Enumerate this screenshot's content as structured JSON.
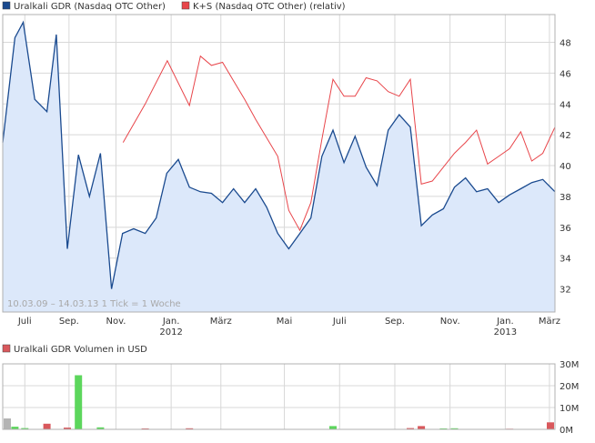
{
  "colors": {
    "main_line": "#1a4a8f",
    "main_fill": "#dce8fa",
    "compare_line": "#e8454a",
    "grid": "#d8d8d8",
    "frame": "#b0b0b0",
    "text": "#333333",
    "watermark": "#a8a8a8",
    "vol_up": "#5cd65c",
    "vol_down": "#d9585c",
    "vol_neutral": "#b4b4b4"
  },
  "chart_data": [
    {
      "type": "line",
      "legend": [
        {
          "label": "Uralkali GDR (Nasdaq OTC Other)",
          "color": "#1a4a8f"
        },
        {
          "label": "K+S (Nasdaq OTC Other) (relativ)",
          "color": "#e8454a"
        }
      ],
      "watermark": "10.03.09 – 14.03.13   1 Tick = 1 Woche",
      "x_ticks": [
        {
          "label": "Juli",
          "t": 0.04
        },
        {
          "label": "Sep.",
          "t": 0.12
        },
        {
          "label": "Nov.",
          "t": 0.205
        },
        {
          "label": "Jan.",
          "t": 0.305
        },
        {
          "label": "2012",
          "t": 0.305,
          "sub": true
        },
        {
          "label": "März",
          "t": 0.395
        },
        {
          "label": "Mai",
          "t": 0.51
        },
        {
          "label": "Juli",
          "t": 0.61
        },
        {
          "label": "Sep.",
          "t": 0.71
        },
        {
          "label": "Nov.",
          "t": 0.81
        },
        {
          "label": "Jan.",
          "t": 0.91
        },
        {
          "label": "2013",
          "t": 0.91,
          "sub": true
        },
        {
          "label": "März",
          "t": 0.99
        }
      ],
      "y_ticks": [
        32,
        34,
        36,
        38,
        40,
        42,
        44,
        46,
        48
      ],
      "ylim": [
        30.5,
        49.8
      ],
      "grid": true,
      "series": [
        {
          "name": "Uralkali GDR (Nasdaq OTC Other)",
          "x": [
            0,
            0.022,
            0.037,
            0.058,
            0.08,
            0.097,
            0.117,
            0.137,
            0.157,
            0.177,
            0.197,
            0.217,
            0.237,
            0.258,
            0.278,
            0.297,
            0.318,
            0.338,
            0.358,
            0.378,
            0.398,
            0.418,
            0.438,
            0.458,
            0.478,
            0.498,
            0.518,
            0.538,
            0.558,
            0.578,
            0.598,
            0.618,
            0.638,
            0.658,
            0.678,
            0.698,
            0.718,
            0.738,
            0.758,
            0.778,
            0.798,
            0.818,
            0.838,
            0.858,
            0.878,
            0.898,
            0.918,
            0.938,
            0.958,
            0.978,
            1.0
          ],
          "values": [
            41.5,
            48.3,
            49.3,
            44.3,
            43.5,
            48.5,
            34.6,
            40.7,
            38.0,
            40.8,
            32.0,
            35.6,
            35.9,
            35.6,
            36.6,
            39.5,
            40.4,
            38.6,
            38.3,
            38.2,
            37.6,
            38.5,
            37.6,
            38.5,
            37.3,
            35.6,
            34.6,
            35.6,
            36.6,
            40.6,
            42.3,
            40.2,
            41.9,
            39.9,
            38.7,
            42.3,
            43.3,
            42.5,
            36.1,
            36.8,
            37.2,
            38.6,
            39.2,
            38.3,
            38.5,
            37.6,
            38.1,
            38.5,
            38.9,
            39.1,
            38.3
          ]
        },
        {
          "name": "K+S (Nasdaq OTC Other) (relativ)",
          "x": [
            0.218,
            0.258,
            0.298,
            0.338,
            0.358,
            0.378,
            0.398,
            0.418,
            0.438,
            0.458,
            0.478,
            0.498,
            0.518,
            0.538,
            0.558,
            0.578,
            0.598,
            0.618,
            0.638,
            0.658,
            0.678,
            0.698,
            0.718,
            0.738,
            0.758,
            0.778,
            0.798,
            0.818,
            0.838,
            0.858,
            0.878,
            0.898,
            0.918,
            0.938,
            0.958,
            0.978,
            1.0
          ],
          "values": [
            41.5,
            44.0,
            46.8,
            43.9,
            47.1,
            46.5,
            46.7,
            45.5,
            44.3,
            43.0,
            41.8,
            40.6,
            37.1,
            35.8,
            37.6,
            41.7,
            45.6,
            44.5,
            44.5,
            45.7,
            45.5,
            44.8,
            44.5,
            45.6,
            38.8,
            39.0,
            39.9,
            40.8,
            41.5,
            42.3,
            40.1,
            40.6,
            41.1,
            42.2,
            40.3,
            40.8,
            42.5
          ]
        }
      ]
    },
    {
      "type": "bar",
      "legend": [
        {
          "label": "Uralkali GDR Volumen in USD",
          "color": "#d9585c"
        }
      ],
      "y_ticks": [
        "0M",
        "10M",
        "20M",
        "30M"
      ],
      "y_tick_values": [
        0,
        10,
        20,
        30
      ],
      "ylim": [
        0,
        30
      ],
      "grid": true,
      "bars": [
        {
          "t": 0.0,
          "value": 5.0,
          "kind": "neutral"
        },
        {
          "t": 0.022,
          "value": 1.2,
          "kind": "up"
        },
        {
          "t": 0.04,
          "value": 0.6,
          "kind": "up"
        },
        {
          "t": 0.08,
          "value": 2.6,
          "kind": "down"
        },
        {
          "t": 0.117,
          "value": 0.8,
          "kind": "down"
        },
        {
          "t": 0.137,
          "value": 24.8,
          "kind": "up"
        },
        {
          "t": 0.177,
          "value": 0.9,
          "kind": "up"
        },
        {
          "t": 0.258,
          "value": 0.4,
          "kind": "down"
        },
        {
          "t": 0.338,
          "value": 0.5,
          "kind": "down"
        },
        {
          "t": 0.598,
          "value": 1.5,
          "kind": "up"
        },
        {
          "t": 0.738,
          "value": 0.6,
          "kind": "down"
        },
        {
          "t": 0.758,
          "value": 1.5,
          "kind": "down"
        },
        {
          "t": 0.798,
          "value": 0.4,
          "kind": "up"
        },
        {
          "t": 0.818,
          "value": 0.5,
          "kind": "up"
        },
        {
          "t": 0.918,
          "value": 0.3,
          "kind": "down"
        },
        {
          "t": 0.998,
          "value": 3.2,
          "kind": "down"
        }
      ]
    }
  ]
}
